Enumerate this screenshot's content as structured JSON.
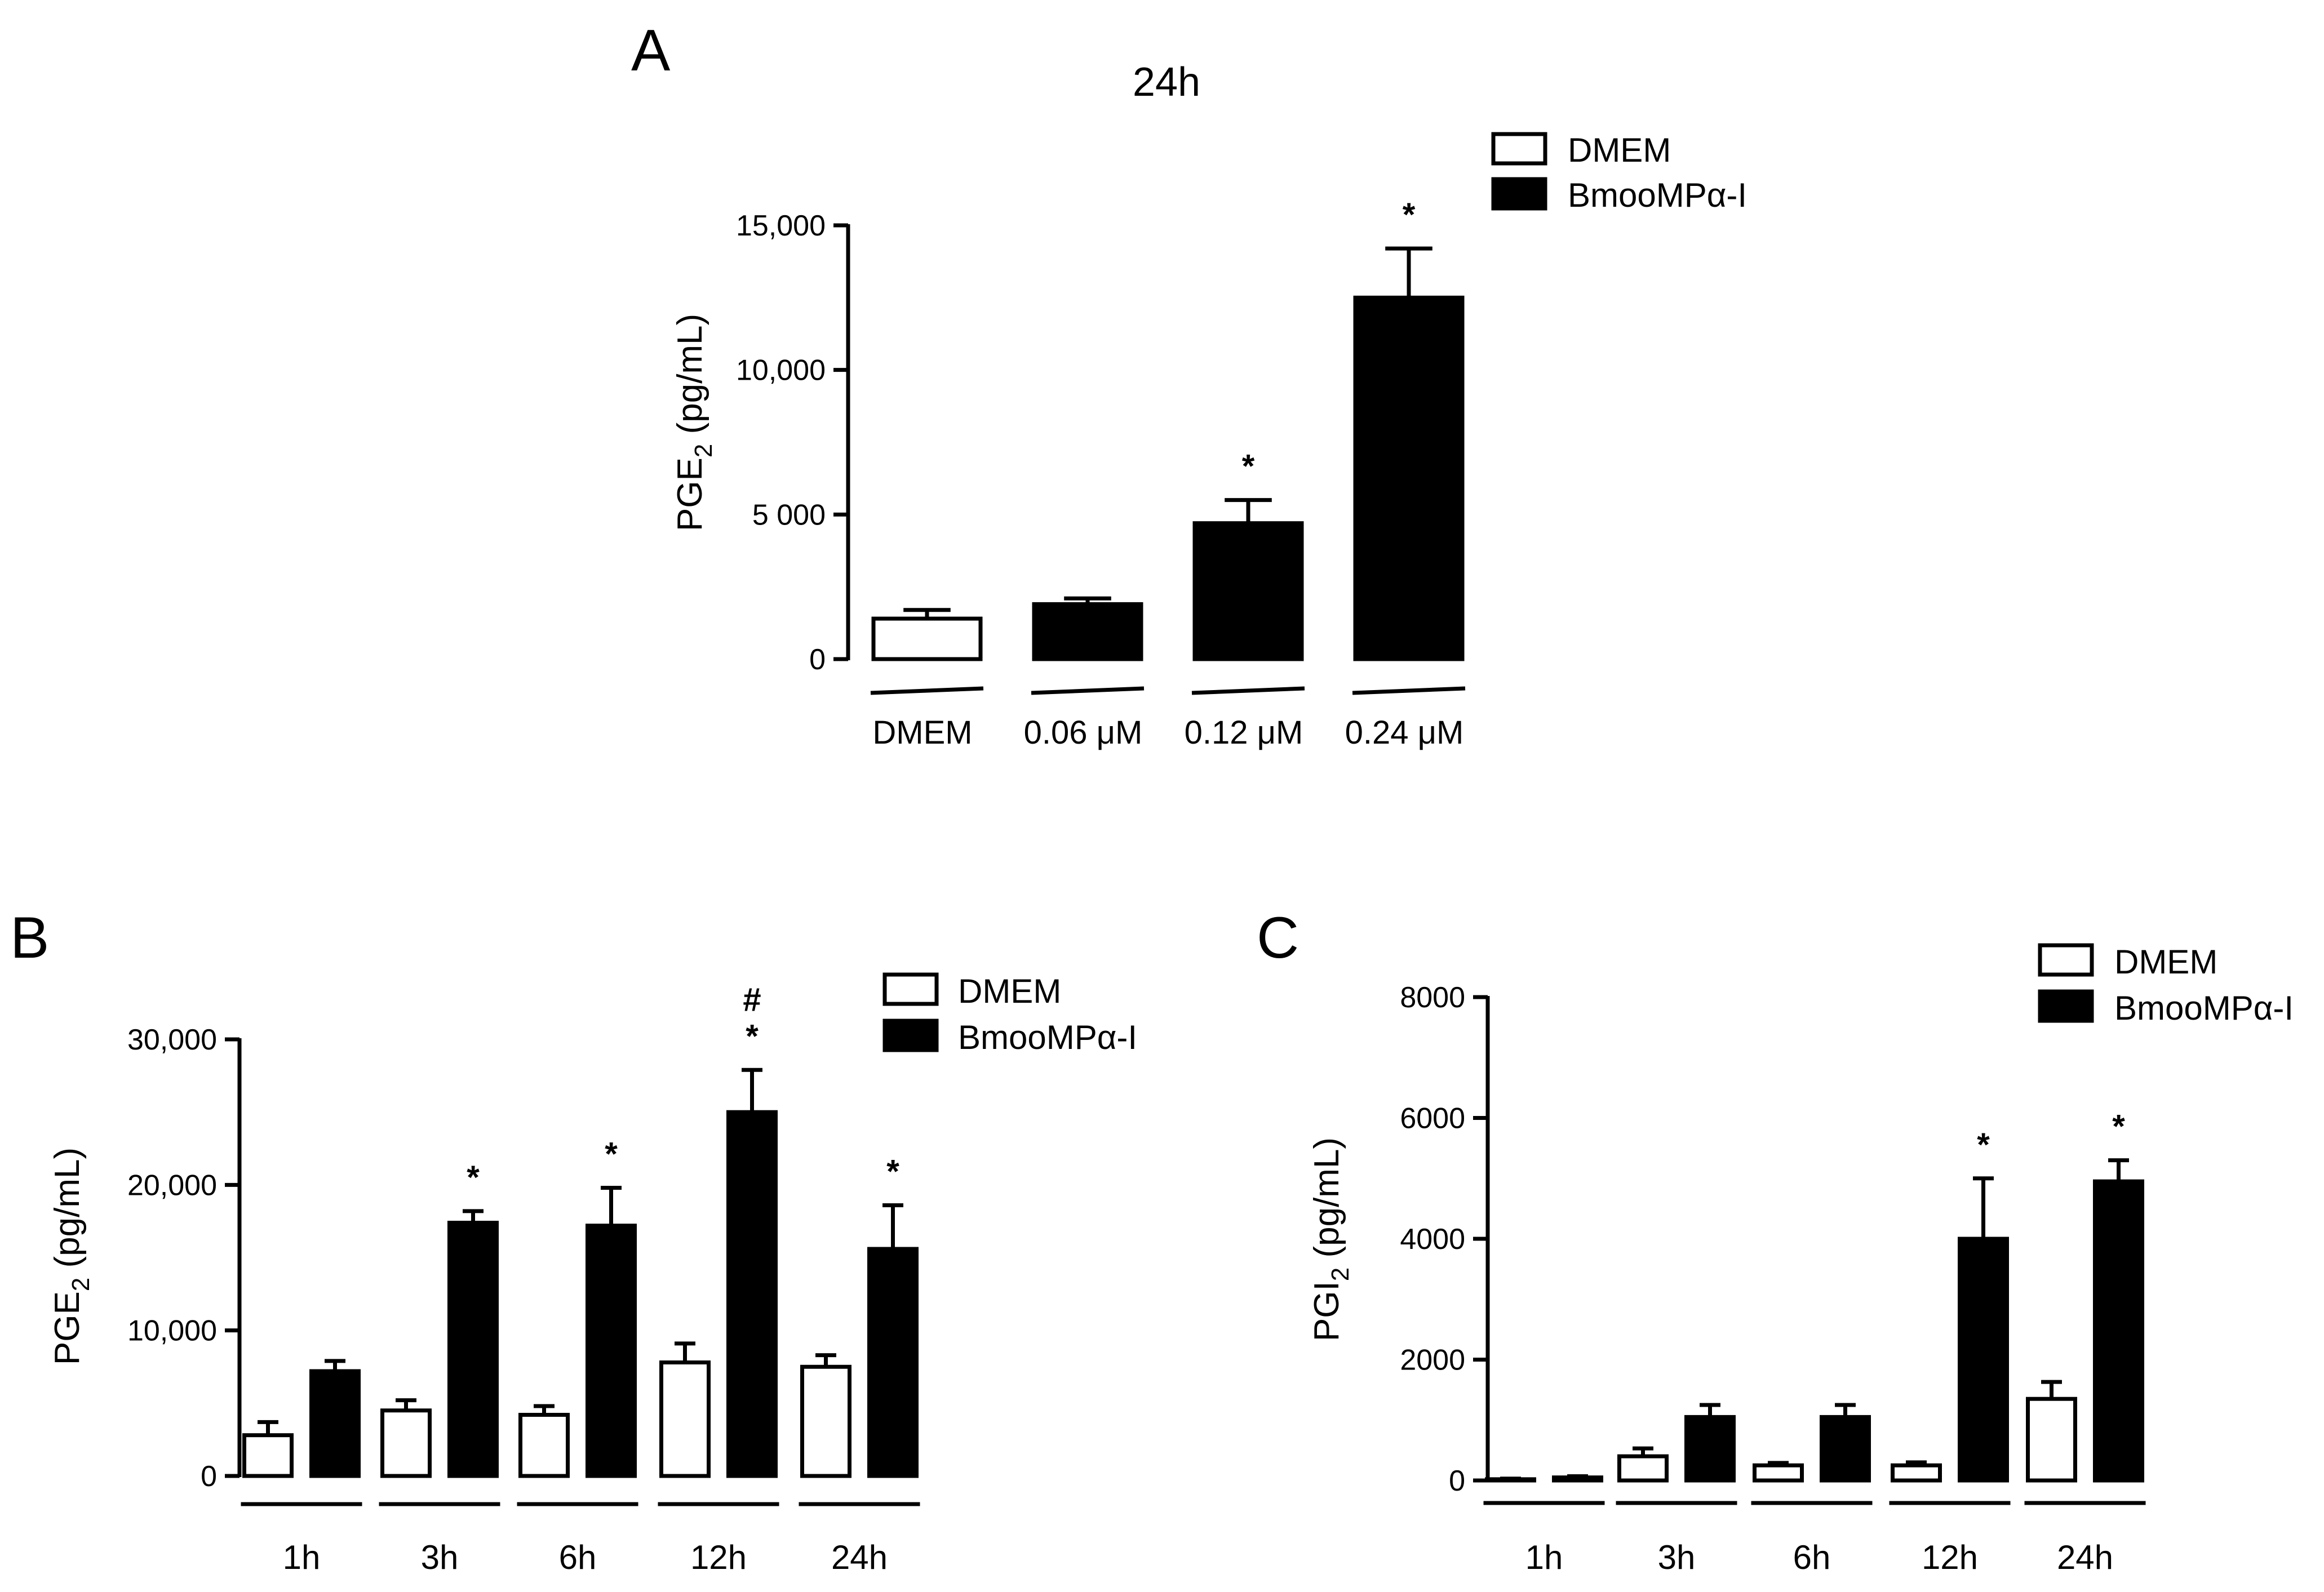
{
  "colors": {
    "dmem": "#ffffff",
    "bmoo": "#000000",
    "stroke": "#000000"
  },
  "legend": {
    "dmem": "DMEM",
    "bmoo": "BmooMPα-I"
  },
  "chart_data": [
    {
      "panel": "A",
      "type": "bar",
      "title": "24h",
      "ylabel_base": "PGE",
      "ylabel_sub": "2",
      "ylabel_unit": " (pg/mL)",
      "ylim": [
        0,
        15000
      ],
      "yticks": [
        0,
        5000,
        10000,
        15000
      ],
      "ytick_labels": [
        "0",
        "5 000",
        "10,000",
        "15,000"
      ],
      "categories": [
        "DMEM",
        "0.06 μM",
        "0.12 μM",
        "0.24 μM"
      ],
      "bars": [
        {
          "category": "DMEM",
          "series": "DMEM",
          "value": 1400,
          "error": 300,
          "sig": ""
        },
        {
          "category": "0.06 μM",
          "series": "BmooMPα-I",
          "value": 1900,
          "error": 200,
          "sig": ""
        },
        {
          "category": "0.12 μM",
          "series": "BmooMPα-I",
          "value": 4700,
          "error": 800,
          "sig": "*"
        },
        {
          "category": "0.24 μM",
          "series": "BmooMPα-I",
          "value": 12500,
          "error": 1700,
          "sig": "*"
        }
      ]
    },
    {
      "panel": "B",
      "type": "bar",
      "title": "",
      "ylabel_base": "PGE",
      "ylabel_sub": "2",
      "ylabel_unit": " (pg/mL)",
      "ylim": [
        0,
        30000
      ],
      "yticks": [
        0,
        10000,
        20000,
        30000
      ],
      "ytick_labels": [
        "0",
        "10,000",
        "20,000",
        "30,000"
      ],
      "categories": [
        "1h",
        "3h",
        "6h",
        "12h",
        "24h"
      ],
      "series": [
        {
          "name": "DMEM",
          "values": [
            2800,
            4500,
            4200,
            7800,
            7500
          ],
          "errors": [
            900,
            700,
            600,
            1300,
            800
          ],
          "sig": [
            "",
            "",
            "",
            "",
            ""
          ]
        },
        {
          "name": "BmooMPα-I",
          "values": [
            7200,
            17400,
            17200,
            25000,
            15600
          ],
          "errors": [
            700,
            800,
            2600,
            2900,
            3000
          ],
          "sig": [
            "",
            "*",
            "*",
            "*",
            "*"
          ]
        }
      ],
      "extra_marks": [
        {
          "category": "12h",
          "series": "BmooMPα-I",
          "symbol": "#"
        }
      ]
    },
    {
      "panel": "C",
      "type": "bar",
      "title": "",
      "ylabel_base": "PGI",
      "ylabel_sub": "2",
      "ylabel_unit": " (pg/mL)",
      "ylim": [
        0,
        8000
      ],
      "yticks": [
        0,
        2000,
        4000,
        6000,
        8000
      ],
      "ytick_labels": [
        "0",
        "2000",
        "4000",
        "6000",
        "8000"
      ],
      "categories": [
        "1h",
        "3h",
        "6h",
        "12h",
        "24h"
      ],
      "series": [
        {
          "name": "DMEM",
          "values": [
            20,
            400,
            250,
            250,
            1350
          ],
          "errors": [
            10,
            130,
            40,
            50,
            280
          ],
          "sig": [
            "",
            "",
            "",
            "",
            ""
          ]
        },
        {
          "name": "BmooMPα-I",
          "values": [
            50,
            1050,
            1050,
            4000,
            4950
          ],
          "errors": [
            20,
            200,
            200,
            1000,
            350
          ],
          "sig": [
            "",
            "",
            "",
            "*",
            "*"
          ]
        }
      ]
    }
  ]
}
